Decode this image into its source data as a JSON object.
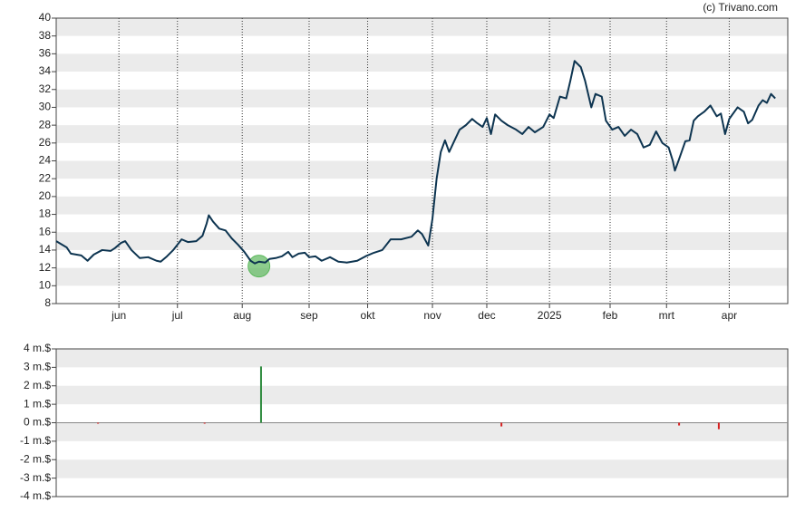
{
  "watermark": "(c) Trivano.com",
  "chart_data": [
    {
      "type": "line",
      "color": "#0d3450",
      "grid": true,
      "x": [
        0,
        5,
        7,
        12,
        14,
        15,
        18,
        22,
        26,
        28,
        31,
        33,
        36,
        40,
        44,
        48,
        50,
        53,
        56,
        60,
        63,
        67,
        70,
        72,
        73,
        75,
        78,
        81,
        84,
        87,
        90,
        93,
        95,
        97,
        100,
        102,
        105,
        108,
        111,
        113,
        116,
        119,
        121,
        124,
        127,
        131,
        135,
        139,
        144,
        148,
        152,
        156,
        160,
        165,
        170,
        173,
        175,
        178,
        180,
        182,
        184,
        186,
        188,
        190,
        193,
        196,
        199,
        201,
        204,
        206,
        208,
        210,
        213,
        216,
        220,
        223,
        226,
        229,
        233,
        236,
        238,
        241,
        244,
        246,
        248,
        251,
        253,
        256,
        258,
        261,
        263,
        266,
        269,
        272,
        275,
        278,
        281,
        284,
        287,
        290,
        293,
        295,
        296,
        298,
        301,
        303,
        305,
        307,
        310,
        313,
        316,
        318,
        320,
        322,
        326,
        329,
        331,
        333,
        336,
        338,
        340,
        342,
        344
      ],
      "values": [
        15.0,
        14.3,
        13.6,
        13.4,
        13.0,
        12.8,
        13.5,
        14.0,
        13.9,
        14.2,
        14.8,
        15.0,
        14.0,
        13.1,
        13.2,
        12.8,
        12.7,
        13.3,
        14.0,
        15.2,
        14.9,
        15.0,
        15.6,
        17.0,
        17.9,
        17.2,
        16.4,
        16.2,
        15.3,
        14.6,
        13.8,
        12.8,
        12.5,
        12.7,
        12.6,
        13.0,
        13.1,
        13.3,
        13.8,
        13.2,
        13.6,
        13.7,
        13.2,
        13.3,
        12.8,
        13.2,
        12.7,
        12.6,
        12.8,
        13.3,
        13.7,
        14.0,
        15.2,
        15.2,
        15.5,
        16.2,
        15.8,
        14.5,
        17.5,
        22.0,
        25.0,
        26.3,
        25.0,
        26.0,
        27.5,
        28.0,
        28.7,
        28.3,
        27.8,
        28.8,
        27.0,
        29.2,
        28.5,
        28.0,
        27.5,
        27.0,
        27.8,
        27.2,
        27.8,
        29.2,
        28.8,
        31.2,
        31.0,
        33.0,
        35.2,
        34.5,
        33.0,
        30.0,
        31.5,
        31.2,
        28.5,
        27.5,
        27.8,
        26.8,
        27.5,
        27.0,
        25.5,
        25.8,
        27.3,
        26.0,
        25.5,
        24.0,
        22.9,
        24.2,
        26.2,
        26.3,
        28.5,
        29.0,
        29.5,
        30.2,
        29.0,
        29.3,
        27.0,
        28.7,
        30.0,
        29.5,
        28.2,
        28.6,
        30.2,
        30.8,
        30.5,
        31.5,
        31.0
      ],
      "highlight": {
        "x": 97,
        "value": 12.2,
        "color": "#5cb85c"
      },
      "xlim": [
        0,
        350
      ],
      "xticks": [
        {
          "value": 30,
          "label": "jun"
        },
        {
          "value": 58,
          "label": "jul"
        },
        {
          "value": 89,
          "label": "aug"
        },
        {
          "value": 121,
          "label": "sep"
        },
        {
          "value": 149,
          "label": "okt"
        },
        {
          "value": 180,
          "label": "nov"
        },
        {
          "value": 206,
          "label": "dec"
        },
        {
          "value": 236,
          "label": "2025"
        },
        {
          "value": 265,
          "label": "feb"
        },
        {
          "value": 292,
          "label": "mrt"
        },
        {
          "value": 322,
          "label": "apr"
        }
      ],
      "ylim": [
        8,
        40
      ],
      "yticks": [
        8,
        10,
        12,
        14,
        16,
        18,
        20,
        22,
        24,
        26,
        28,
        30,
        32,
        34,
        36,
        38,
        40
      ]
    },
    {
      "type": "bar",
      "grid": true,
      "x": [
        20,
        71,
        98,
        213,
        298,
        317
      ],
      "values": [
        -0.05,
        -0.05,
        3.05,
        -0.2,
        -0.15,
        -0.35
      ],
      "pos_color": "#2e8b3e",
      "neg_color": "#d62020",
      "xlim": [
        0,
        350
      ],
      "ylim": [
        -4,
        4
      ],
      "yticks": [
        {
          "value": -4,
          "label": "-4 m.$"
        },
        {
          "value": -3,
          "label": "-3 m.$"
        },
        {
          "value": -2,
          "label": "-2 m.$"
        },
        {
          "value": -1,
          "label": "-1 m.$"
        },
        {
          "value": 0,
          "label": "0 m.$"
        },
        {
          "value": 1,
          "label": "1 m.$"
        },
        {
          "value": 2,
          "label": "2 m.$"
        },
        {
          "value": 3,
          "label": "3 m.$"
        },
        {
          "value": 4,
          "label": "4 m.$"
        }
      ]
    }
  ]
}
